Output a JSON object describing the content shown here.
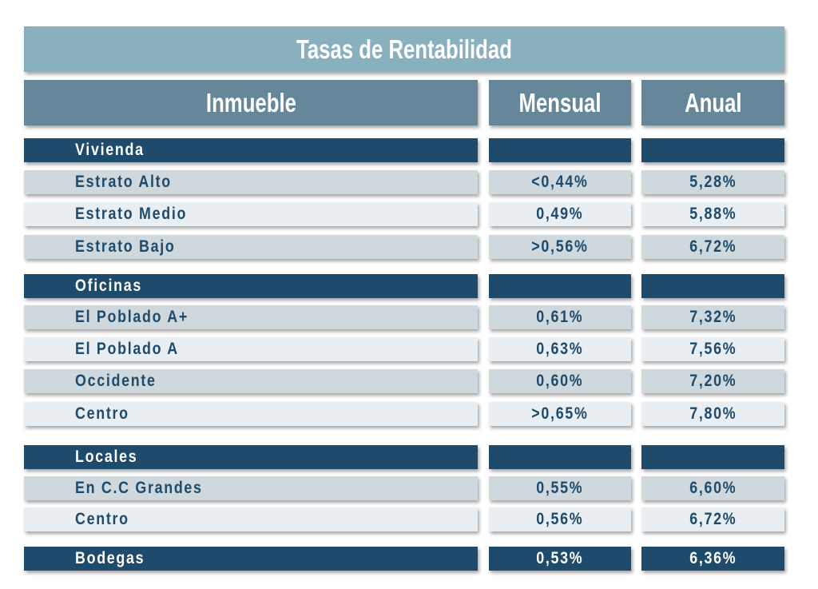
{
  "title": "Tasas de Rentabilidad",
  "headers": {
    "inmueble": "Inmueble",
    "mensual": "Mensual",
    "anual": "Anual"
  },
  "colors": {
    "title_bg": "#88b0bf",
    "header_bg": "#668799",
    "section_bg": "#1e4a6b",
    "row_dark": "#cfd8dd",
    "row_light": "#e8eef1",
    "text": "#1e4a6b"
  },
  "rows": [
    {
      "type": "section",
      "label": "Vivienda",
      "mensual": "",
      "anual": ""
    },
    {
      "type": "dark",
      "label": "Estrato Alto",
      "mensual": "<0,44%",
      "anual": "5,28%"
    },
    {
      "type": "light",
      "label": "Estrato Medio",
      "mensual": "0,49%",
      "anual": "5,88%"
    },
    {
      "type": "dark",
      "label": "Estrato Bajo",
      "mensual": ">0,56%",
      "anual": "6,72%"
    },
    {
      "type": "section",
      "label": "Oficinas",
      "mensual": "",
      "anual": ""
    },
    {
      "type": "dark",
      "label": "El Poblado A+",
      "mensual": "0,61%",
      "anual": "7,32%"
    },
    {
      "type": "light",
      "label": "El Poblado A",
      "mensual": "0,63%",
      "anual": "7,56%"
    },
    {
      "type": "dark",
      "label": "Occidente",
      "mensual": "0,60%",
      "anual": "7,20%"
    },
    {
      "type": "light",
      "label": "Centro",
      "mensual": ">0,65%",
      "anual": "7,80%"
    },
    {
      "type": "section",
      "label": "Locales",
      "mensual": "",
      "anual": ""
    },
    {
      "type": "dark",
      "label": "En C.C Grandes",
      "mensual": "0,55%",
      "anual": "6,60%"
    },
    {
      "type": "light",
      "label": "Centro",
      "mensual": "0,56%",
      "anual": "6,72%"
    },
    {
      "type": "section",
      "label": "Bodegas",
      "mensual": "0,53%",
      "anual": "6,36%"
    }
  ]
}
